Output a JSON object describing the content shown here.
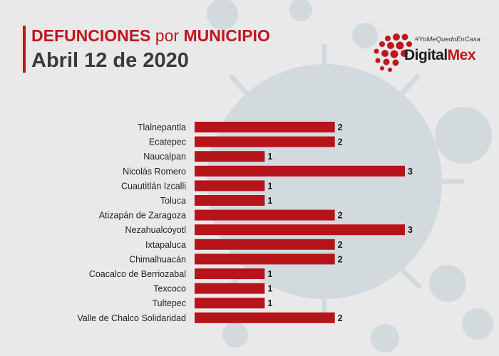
{
  "header": {
    "title_part1": "DEFUNCIONES",
    "title_part2": "por",
    "title_part3": "MUNICIPIO",
    "subtitle": "Abril 12 de 2020"
  },
  "logo": {
    "hashtag": "#YoMeQuedoEnCasa",
    "brand_part1": "Digital",
    "brand_part2": "Mex"
  },
  "colors": {
    "accent": "#c0161c",
    "bar": "#b5141a",
    "background": "#e9e9e9",
    "virus": "#d3dadd",
    "text": "#222222"
  },
  "chart_data": {
    "type": "bar",
    "orientation": "horizontal",
    "categories": [
      "Tlalnepantla",
      "Ecatepec",
      "Naucalpan",
      "Nicolás Romero",
      "Cuautitlán Izcalli",
      "Toluca",
      "Atizapán de Zaragoza",
      "Nezahualcóyotl",
      "Ixtapaluca",
      "Chimalhuacán",
      "Coacalco de Berriozabal",
      "Texcoco",
      "Tultepec",
      "Valle de Chalco Solidaridad"
    ],
    "values": [
      2,
      2,
      1,
      3,
      1,
      1,
      2,
      3,
      2,
      2,
      1,
      1,
      1,
      2
    ],
    "xlim": [
      0,
      3
    ],
    "grid": false,
    "data_labels": true
  }
}
